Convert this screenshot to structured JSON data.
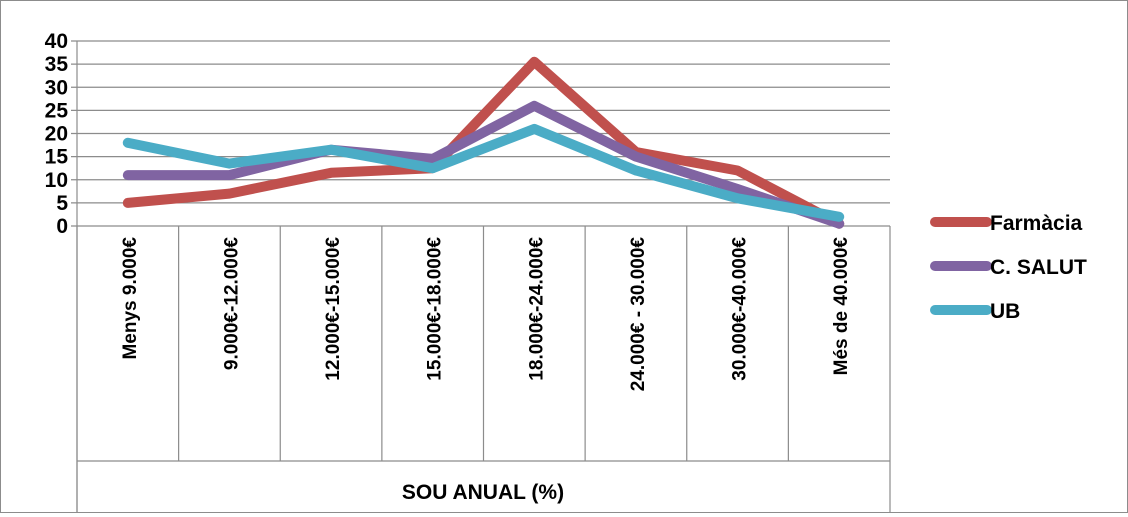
{
  "chart_data": {
    "type": "line",
    "title": "",
    "xlabel": "SOU ANUAL (%)",
    "ylabel": "",
    "categories": [
      "Menys 9.000€",
      "9.000€-12.000€",
      "12.000€-15.000€",
      "15.000€-18.000€",
      "18.000€-24.000€",
      "24.000€ - 30.000€",
      "30.000€-40.000€",
      "Més de 40.000€"
    ],
    "yticks": [
      "0",
      "5",
      "10",
      "15",
      "20",
      "25",
      "30",
      "35",
      "40"
    ],
    "ylim": [
      0,
      40
    ],
    "grid": true,
    "legend_position": "right",
    "series": [
      {
        "name": "Farmàcia",
        "color": "#c0504d",
        "values": [
          5,
          7,
          11.5,
          12.5,
          35.5,
          16,
          12,
          0.5
        ]
      },
      {
        "name": "C. SALUT",
        "color": "#8064a2",
        "values": [
          11,
          11,
          16.5,
          14.5,
          26,
          15,
          8,
          0.5
        ]
      },
      {
        "name": "UB",
        "color": "#4bacc6",
        "values": [
          18,
          13.5,
          16.5,
          12.5,
          21,
          12,
          6,
          2
        ]
      }
    ]
  }
}
